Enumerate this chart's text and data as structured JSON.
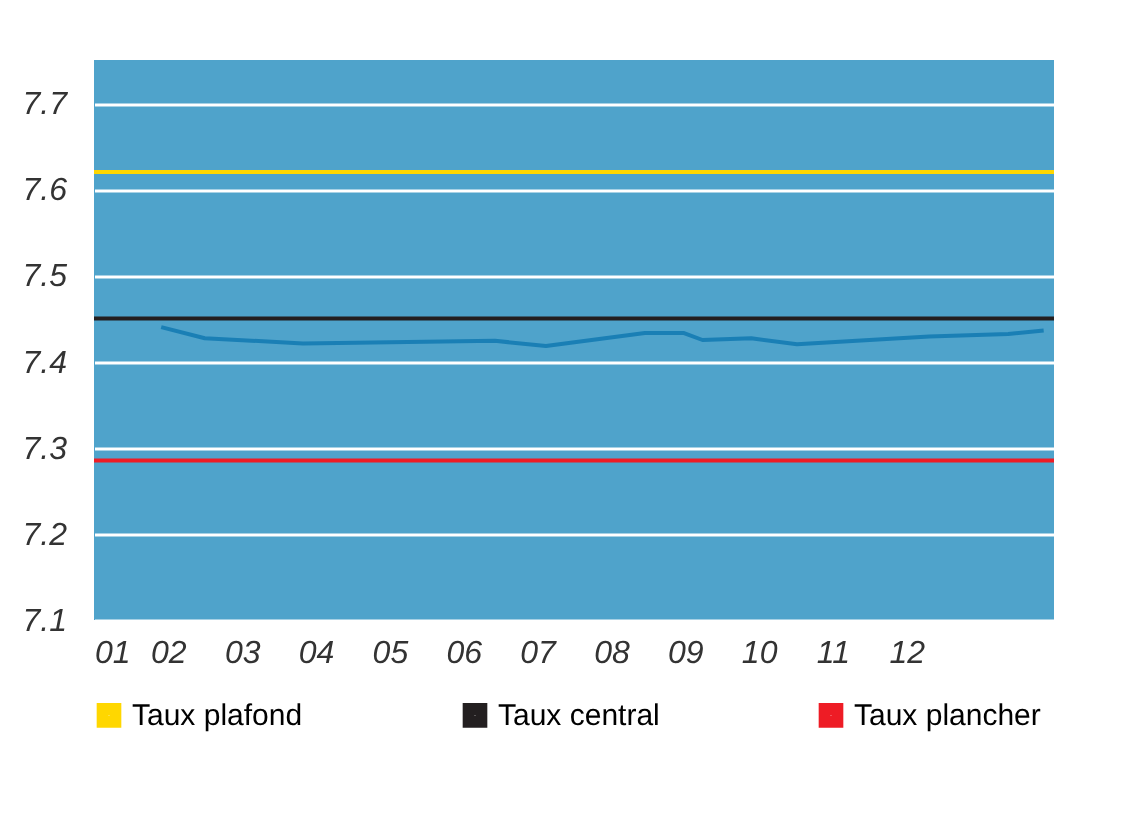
{
  "chart_data": {
    "type": "line",
    "xlim": [
      1,
      14
    ],
    "xticks": [
      {
        "value": 1,
        "label": "01"
      },
      {
        "value": 2,
        "label": "02"
      },
      {
        "value": 3,
        "label": "03"
      },
      {
        "value": 4,
        "label": "04"
      },
      {
        "value": 5,
        "label": "05"
      },
      {
        "value": 6,
        "label": "06"
      },
      {
        "value": 7,
        "label": "07"
      },
      {
        "value": 8,
        "label": "08"
      },
      {
        "value": 9,
        "label": "09"
      },
      {
        "value": 10,
        "label": "10"
      },
      {
        "value": 11,
        "label": "11"
      },
      {
        "value": 12,
        "label": "12"
      }
    ],
    "ylim": [
      7.1,
      7.75
    ],
    "yticks": [
      7.1,
      7.2,
      7.3,
      7.4,
      7.5,
      7.6,
      7.7
    ],
    "grid": "y",
    "legend": "bottom",
    "series": [
      {
        "name": "Taux plafond",
        "color": "#ffd700",
        "x": [
          1,
          14
        ],
        "values": [
          7.62,
          7.62
        ]
      },
      {
        "name": "Taux central",
        "color": "#231f20",
        "x": [
          1,
          14
        ],
        "values": [
          7.45,
          7.45
        ]
      },
      {
        "name": "Taux plancher",
        "color": "#ee1c25",
        "x": [
          1,
          14
        ],
        "values": [
          7.285,
          7.285
        ]
      },
      {
        "color": "#1a7fb5",
        "x": [
          1.91,
          2.5,
          3.83,
          6.43,
          7.12,
          8.46,
          8.99,
          9.24,
          9.9,
          10.52,
          12.31,
          13.38,
          13.86
        ],
        "values": [
          7.44,
          7.427,
          7.421,
          7.424,
          7.418,
          7.433,
          7.433,
          7.425,
          7.427,
          7.42,
          7.429,
          7.432,
          7.436
        ]
      }
    ]
  }
}
